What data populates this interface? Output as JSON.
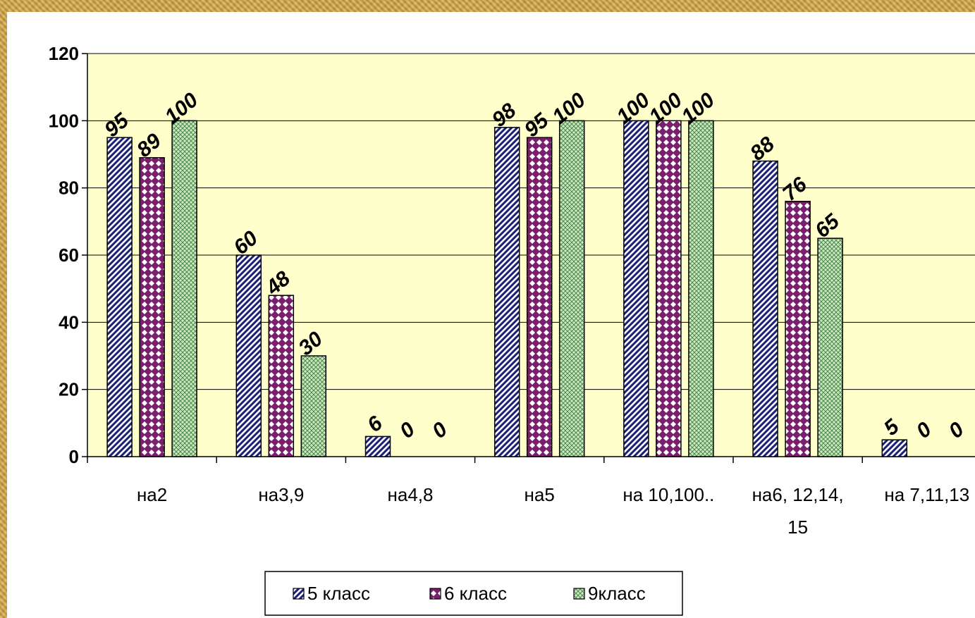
{
  "chart_data": {
    "type": "bar",
    "categories": [
      "на2",
      "на3,9",
      "на4,8",
      "на5",
      "на 10,100..",
      "на6, 12,14, 15",
      "на 7,11,13"
    ],
    "category_lines": [
      [
        "на2"
      ],
      [
        "на3,9"
      ],
      [
        "на4,8"
      ],
      [
        "на5"
      ],
      [
        "на 10,100.."
      ],
      [
        "на6, 12,14,",
        "15"
      ],
      [
        "на 7,11,13"
      ]
    ],
    "series": [
      {
        "name": "5 класс",
        "values": [
          95,
          60,
          6,
          98,
          100,
          88,
          5
        ],
        "color": "#1a1f7a",
        "pattern": "diagonal-stripes"
      },
      {
        "name": "6 класс",
        "values": [
          89,
          48,
          0,
          95,
          100,
          76,
          0
        ],
        "color": "#7a1f6e",
        "pattern": "checker-diamond"
      },
      {
        "name": "9класс",
        "values": [
          100,
          30,
          0,
          100,
          100,
          65,
          0
        ],
        "color": "#3c7a3c",
        "pattern": "cross-hatch"
      }
    ],
    "yticks": [
      0,
      20,
      40,
      60,
      80,
      100,
      120
    ],
    "ylim": [
      0,
      120
    ],
    "grid": true,
    "legend_position": "bottom",
    "plot_background": "#ffffcc"
  }
}
